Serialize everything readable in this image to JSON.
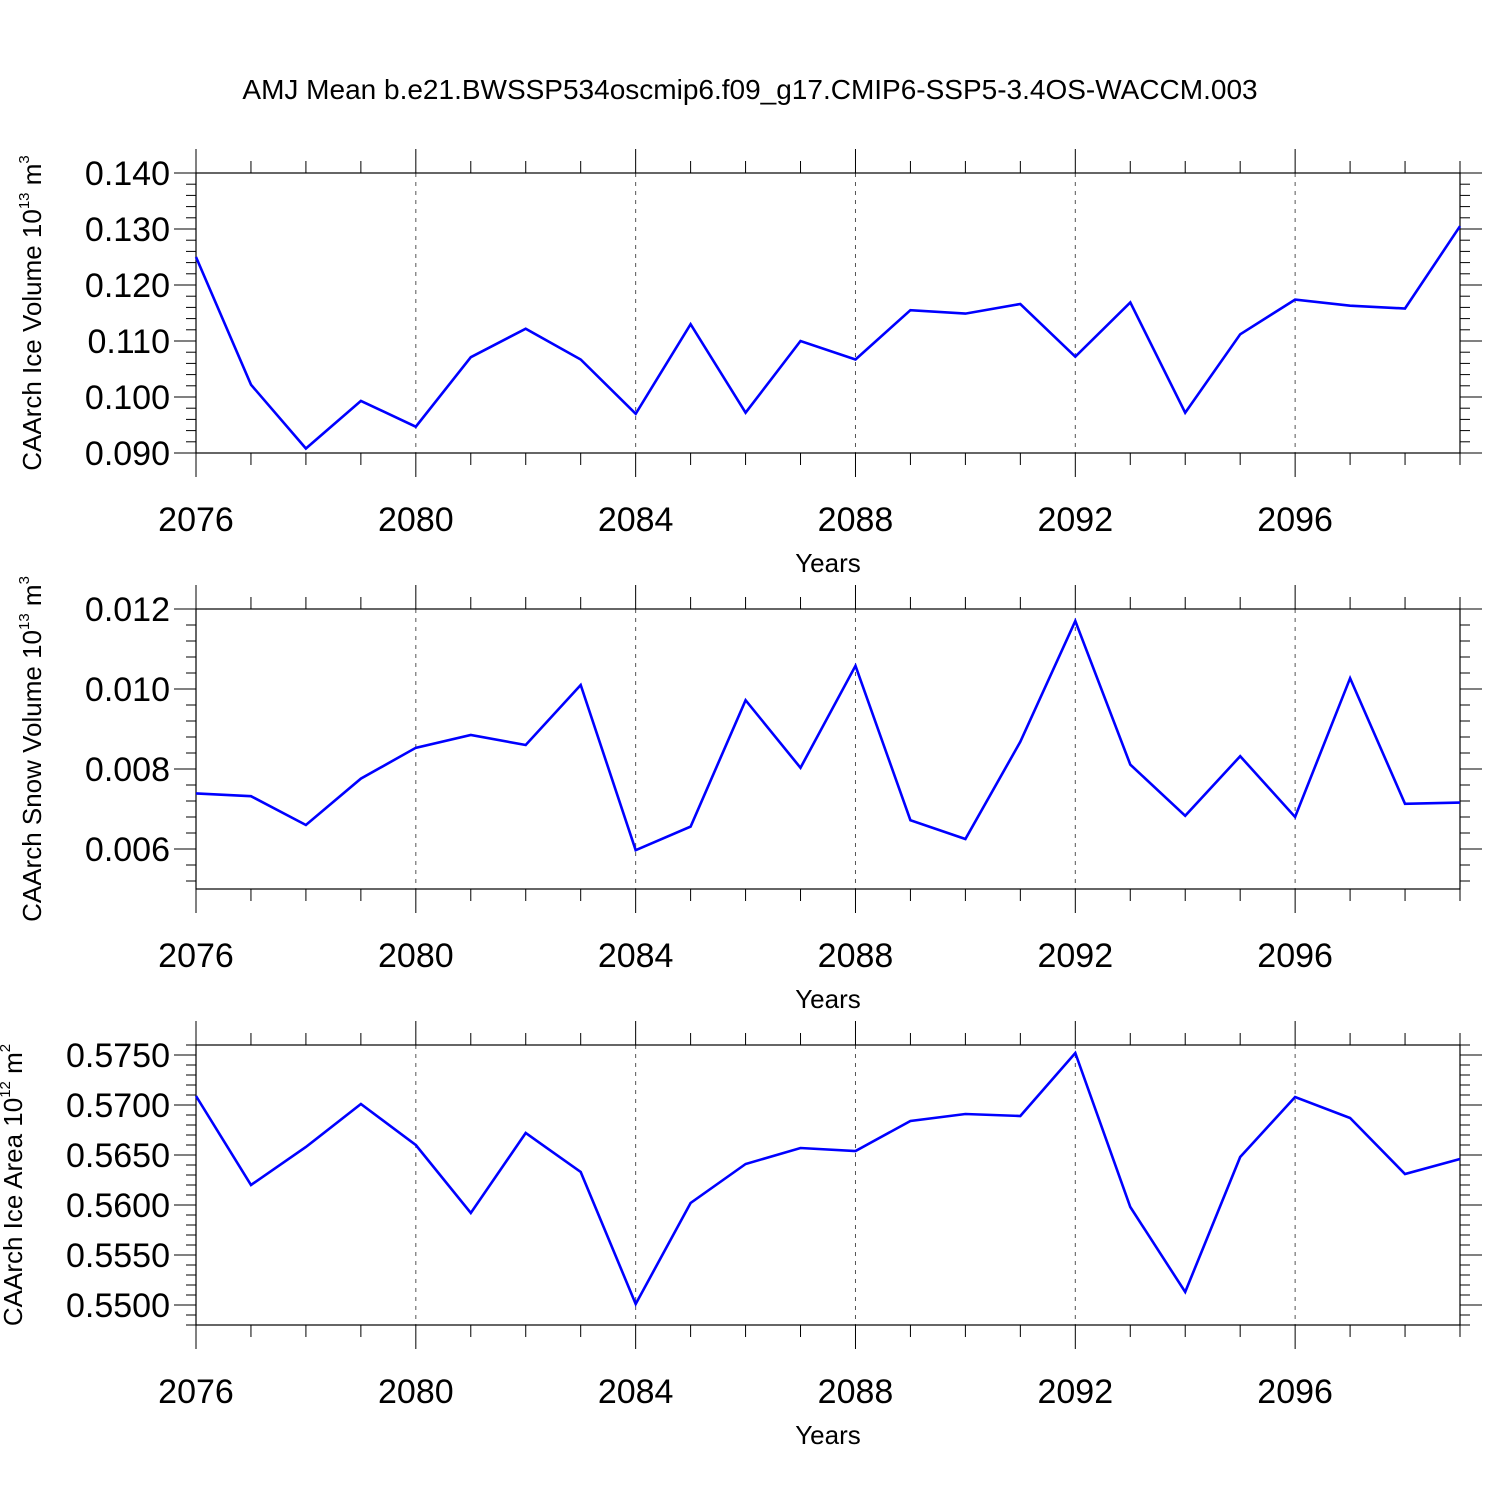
{
  "title": "AMJ Mean b.e21.BWSSP534oscmip6.f09_g17.CMIP6-SSP5-3.4OS-WACCM.003",
  "colors": {
    "series": "#0000ff",
    "axis": "#000000",
    "grid": "#555555"
  },
  "chart_data": [
    {
      "type": "line",
      "ylabel": {
        "text": "CAArch Ice Volume 10",
        "sup": "13",
        "unit": " m",
        "unit_sup": "3"
      },
      "xlabel": "Years",
      "xlim": [
        2076,
        2099
      ],
      "ylim": [
        0.09,
        0.14
      ],
      "yticks": [
        0.09,
        0.1,
        0.11,
        0.12,
        0.13,
        0.14
      ],
      "ytick_labels": [
        "0.090",
        "0.100",
        "0.110",
        "0.120",
        "0.130",
        "0.140"
      ],
      "xticks": [
        2076,
        2080,
        2084,
        2088,
        2092,
        2096
      ],
      "xtick_labels": [
        "2076",
        "2080",
        "2084",
        "2088",
        "2092",
        "2096"
      ],
      "grid": "vertical dashed at major x ticks",
      "x": [
        2076,
        2077,
        2078,
        2079,
        2080,
        2081,
        2082,
        2083,
        2084,
        2085,
        2086,
        2087,
        2088,
        2089,
        2090,
        2091,
        2092,
        2093,
        2094,
        2095,
        2096,
        2097,
        2098,
        2099
      ],
      "y": [
        0.125,
        0.1022,
        0.0908,
        0.0993,
        0.0947,
        0.1071,
        0.1122,
        0.1067,
        0.097,
        0.113,
        0.0972,
        0.11,
        0.1067,
        0.1155,
        0.1149,
        0.1166,
        0.1072,
        0.1169,
        0.0972,
        0.1112,
        0.1174,
        0.1163,
        0.1158,
        0.1305
      ]
    },
    {
      "type": "line",
      "ylabel": {
        "text": "CAArch Snow Volume 10",
        "sup": "13",
        "unit": " m",
        "unit_sup": "3"
      },
      "xlabel": "Years",
      "xlim": [
        2076,
        2099
      ],
      "ylim": [
        0.005,
        0.012
      ],
      "yticks": [
        0.006,
        0.008,
        0.01,
        0.012
      ],
      "ytick_labels": [
        "0.006",
        "0.008",
        "0.010",
        "0.012"
      ],
      "xticks": [
        2076,
        2080,
        2084,
        2088,
        2092,
        2096
      ],
      "xtick_labels": [
        "2076",
        "2080",
        "2084",
        "2088",
        "2092",
        "2096"
      ],
      "grid": "vertical dashed at major x ticks",
      "x": [
        2076,
        2077,
        2078,
        2079,
        2080,
        2081,
        2082,
        2083,
        2084,
        2085,
        2086,
        2087,
        2088,
        2089,
        2090,
        2091,
        2092,
        2093,
        2094,
        2095,
        2096,
        2097,
        2098,
        2099
      ],
      "y": [
        0.00739,
        0.00732,
        0.0066,
        0.00776,
        0.00853,
        0.00885,
        0.0086,
        0.0101,
        0.00597,
        0.00656,
        0.00972,
        0.00803,
        0.01058,
        0.00672,
        0.00625,
        0.00868,
        0.0117,
        0.00811,
        0.00683,
        0.00832,
        0.0068,
        0.01027,
        0.00713,
        0.00716
      ]
    },
    {
      "type": "line",
      "ylabel": {
        "text": "CAArch Ice Area 10",
        "sup": "12",
        "unit": " m",
        "unit_sup": "2"
      },
      "xlabel": "Years",
      "xlim": [
        2076,
        2099
      ],
      "ylim": [
        0.548,
        0.576
      ],
      "yticks": [
        0.55,
        0.555,
        0.56,
        0.565,
        0.57,
        0.575
      ],
      "ytick_labels": [
        "0.5500",
        "0.5550",
        "0.5600",
        "0.5650",
        "0.5700",
        "0.5750"
      ],
      "xticks": [
        2076,
        2080,
        2084,
        2088,
        2092,
        2096
      ],
      "xtick_labels": [
        "2076",
        "2080",
        "2084",
        "2088",
        "2092",
        "2096"
      ],
      "grid": "vertical dashed at major x ticks",
      "x": [
        2076,
        2077,
        2078,
        2079,
        2080,
        2081,
        2082,
        2083,
        2084,
        2085,
        2086,
        2087,
        2088,
        2089,
        2090,
        2091,
        2092,
        2093,
        2094,
        2095,
        2096,
        2097,
        2098,
        2099
      ],
      "y": [
        0.5709,
        0.562,
        0.5658,
        0.5701,
        0.566,
        0.5592,
        0.5672,
        0.5633,
        0.5501,
        0.5602,
        0.5641,
        0.5657,
        0.5654,
        0.5684,
        0.5691,
        0.5689,
        0.5752,
        0.5598,
        0.5513,
        0.5648,
        0.5708,
        0.5687,
        0.5631,
        0.5646
      ]
    }
  ]
}
